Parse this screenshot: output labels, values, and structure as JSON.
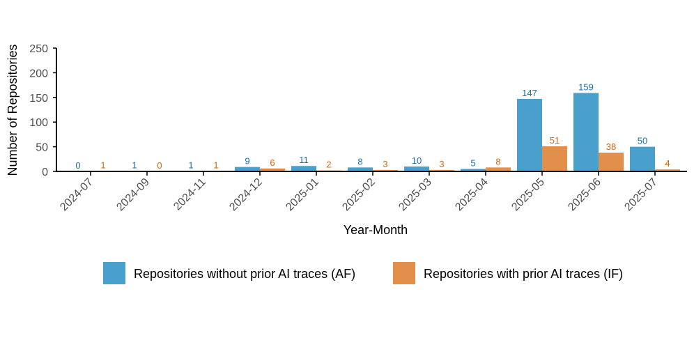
{
  "chart_data": {
    "type": "bar",
    "title": "",
    "xlabel": "Year-Month",
    "ylabel": "Number of Repositories",
    "ylim": [
      0,
      250
    ],
    "yticks": [
      0,
      50,
      100,
      150,
      200,
      250
    ],
    "grid": false,
    "legend_position": "bottom",
    "categories": [
      "2024-07",
      "2024-09",
      "2024-11",
      "2024-12",
      "2025-01",
      "2025-02",
      "2025-03",
      "2025-04",
      "2025-05",
      "2025-06",
      "2025-07"
    ],
    "series": [
      {
        "name": "Repositories without prior AI traces (AF)",
        "color": "#4aa0cc",
        "label_color": "#1a6fa8",
        "values": [
          0,
          1,
          1,
          9,
          11,
          8,
          10,
          5,
          147,
          159,
          50
        ]
      },
      {
        "name": "Repositories with prior AI traces (IF)",
        "color": "#e38f4c",
        "label_color": "#d0640f",
        "values": [
          1,
          0,
          1,
          6,
          2,
          3,
          3,
          8,
          51,
          38,
          4
        ]
      }
    ]
  }
}
